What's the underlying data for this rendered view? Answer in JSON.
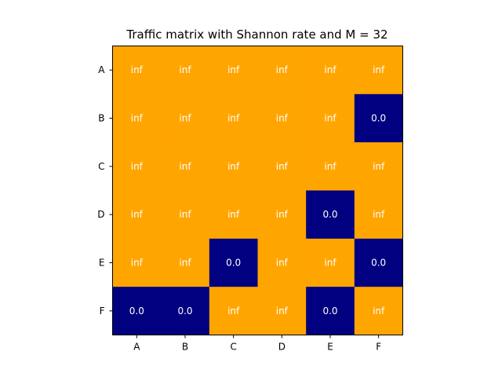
{
  "chart_data": {
    "type": "heatmap",
    "title": "Traffic matrix with Shannon rate and M = 32",
    "xlabel": "",
    "ylabel": "",
    "x_categories": [
      "A",
      "B",
      "C",
      "D",
      "E",
      "F"
    ],
    "y_categories": [
      "A",
      "B",
      "C",
      "D",
      "E",
      "F"
    ],
    "values": [
      [
        "inf",
        "inf",
        "inf",
        "inf",
        "inf",
        "inf"
      ],
      [
        "inf",
        "inf",
        "inf",
        "inf",
        "inf",
        "0.0"
      ],
      [
        "inf",
        "inf",
        "inf",
        "inf",
        "inf",
        "inf"
      ],
      [
        "inf",
        "inf",
        "inf",
        "inf",
        "0.0",
        "inf"
      ],
      [
        "inf",
        "inf",
        "0.0",
        "inf",
        "inf",
        "0.0"
      ],
      [
        "0.0",
        "0.0",
        "inf",
        "inf",
        "0.0",
        "inf"
      ]
    ],
    "colors": {
      "inf": "#ffa500",
      "zero": "#000080",
      "cell_text": "#ffffff"
    },
    "grid": false,
    "legend": "none"
  }
}
